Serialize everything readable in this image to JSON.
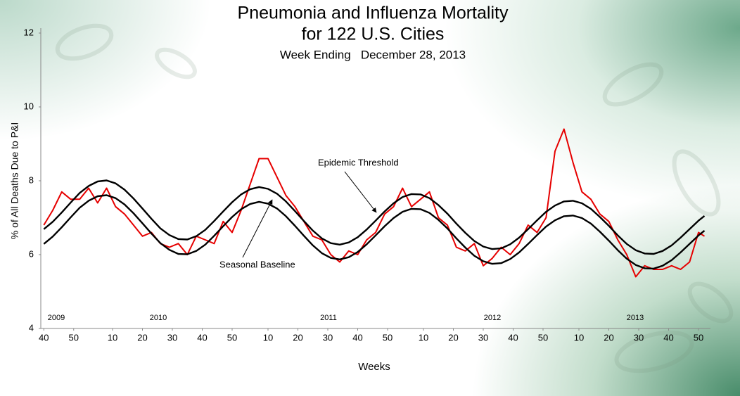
{
  "chart_data": {
    "type": "line",
    "title": [
      "Pneumonia and Influenza Mortality",
      "for 122 U.S. Cities"
    ],
    "subtitle": "Week Ending   December 28, 2013",
    "y_label": "% of All Deaths Due to P&I",
    "x_label": "Weeks",
    "year_labels": [
      "2009",
      "2010",
      "2011",
      "2012",
      "2013"
    ],
    "ylim": [
      4,
      12
    ],
    "yticks": [
      4,
      6,
      8,
      10,
      12
    ],
    "xlim": [
      -1,
      223
    ],
    "xticks": [
      {
        "value": 0,
        "label": "40"
      },
      {
        "value": 10,
        "label": "50"
      },
      {
        "value": 23,
        "label": "10"
      },
      {
        "value": 33,
        "label": "20"
      },
      {
        "value": 43,
        "label": "30"
      },
      {
        "value": 53,
        "label": "40"
      },
      {
        "value": 63,
        "label": "50"
      },
      {
        "value": 75,
        "label": "10"
      },
      {
        "value": 85,
        "label": "20"
      },
      {
        "value": 95,
        "label": "30"
      },
      {
        "value": 105,
        "label": "40"
      },
      {
        "value": 115,
        "label": "50"
      },
      {
        "value": 127,
        "label": "10"
      },
      {
        "value": 137,
        "label": "20"
      },
      {
        "value": 147,
        "label": "30"
      },
      {
        "value": 157,
        "label": "40"
      },
      {
        "value": 167,
        "label": "50"
      },
      {
        "value": 179,
        "label": "10"
      },
      {
        "value": 189,
        "label": "20"
      },
      {
        "value": 199,
        "label": "30"
      },
      {
        "value": 209,
        "label": "40"
      },
      {
        "value": 219,
        "label": "50"
      }
    ],
    "x": [
      0,
      3,
      6,
      9,
      12,
      15,
      18,
      21,
      24,
      27,
      30,
      33,
      36,
      39,
      42,
      45,
      48,
      51,
      54,
      57,
      60,
      63,
      66,
      69,
      72,
      75,
      78,
      81,
      84,
      87,
      90,
      93,
      96,
      99,
      102,
      105,
      108,
      111,
      114,
      117,
      120,
      123,
      126,
      129,
      132,
      135,
      138,
      141,
      144,
      147,
      150,
      153,
      156,
      159,
      162,
      165,
      168,
      171,
      174,
      177,
      180,
      183,
      186,
      189,
      192,
      195,
      198,
      201,
      204,
      207,
      210,
      213,
      216,
      219,
      221
    ],
    "series": [
      {
        "color": "#e60000",
        "values": [
          6.8,
          7.2,
          7.7,
          7.5,
          7.5,
          7.8,
          7.4,
          7.8,
          7.3,
          7.1,
          6.8,
          6.5,
          6.6,
          6.3,
          6.2,
          6.3,
          6.0,
          6.5,
          6.4,
          6.3,
          6.9,
          6.6,
          7.2,
          7.9,
          8.6,
          8.6,
          8.1,
          7.6,
          7.3,
          6.9,
          6.5,
          6.4,
          6.0,
          5.8,
          6.1,
          6.0,
          6.4,
          6.6,
          7.1,
          7.3,
          7.8,
          7.3,
          7.5,
          7.7,
          7.0,
          6.8,
          6.2,
          6.1,
          6.3,
          5.7,
          5.9,
          6.2,
          6.0,
          6.3,
          6.8,
          6.6,
          7.0,
          8.8,
          9.4,
          8.5,
          7.7,
          7.5,
          7.1,
          6.9,
          6.4,
          6.0,
          5.4,
          5.7,
          5.6,
          5.6,
          5.7,
          5.6,
          5.8,
          6.6,
          6.5
        ]
      },
      {
        "name": "Seasonal Baseline",
        "color": "#000000",
        "values": [
          6.29,
          6.49,
          6.74,
          7.01,
          7.27,
          7.46,
          7.58,
          7.61,
          7.53,
          7.36,
          7.12,
          6.85,
          6.57,
          6.31,
          6.13,
          6.02,
          6.01,
          6.1,
          6.27,
          6.51,
          6.77,
          7.02,
          7.23,
          7.37,
          7.43,
          7.38,
          7.25,
          7.04,
          6.78,
          6.51,
          6.25,
          6.04,
          5.91,
          5.87,
          5.93,
          6.07,
          6.28,
          6.52,
          6.77,
          6.99,
          7.16,
          7.24,
          7.23,
          7.13,
          6.94,
          6.71,
          6.44,
          6.19,
          5.97,
          5.82,
          5.75,
          5.77,
          5.88,
          6.06,
          6.29,
          6.53,
          6.76,
          6.93,
          7.04,
          7.06,
          6.99,
          6.84,
          6.62,
          6.38,
          6.12,
          5.89,
          5.72,
          5.63,
          5.62,
          5.7,
          5.85,
          6.06,
          6.29,
          6.52,
          6.65
        ]
      },
      {
        "name": "Epidemic Threshold",
        "color": "#000000",
        "values": [
          6.69,
          6.89,
          7.14,
          7.41,
          7.67,
          7.86,
          7.98,
          8.01,
          7.93,
          7.76,
          7.52,
          7.25,
          6.97,
          6.71,
          6.53,
          6.42,
          6.41,
          6.5,
          6.67,
          6.91,
          7.17,
          7.42,
          7.63,
          7.77,
          7.83,
          7.78,
          7.65,
          7.44,
          7.18,
          6.91,
          6.65,
          6.44,
          6.31,
          6.27,
          6.33,
          6.47,
          6.68,
          6.92,
          7.17,
          7.39,
          7.56,
          7.64,
          7.63,
          7.53,
          7.34,
          7.11,
          6.84,
          6.59,
          6.37,
          6.22,
          6.15,
          6.17,
          6.28,
          6.46,
          6.69,
          6.93,
          7.16,
          7.33,
          7.44,
          7.46,
          7.39,
          7.24,
          7.02,
          6.78,
          6.52,
          6.29,
          6.12,
          6.03,
          6.02,
          6.1,
          6.25,
          6.46,
          6.69,
          6.92,
          7.05
        ]
      }
    ]
  }
}
